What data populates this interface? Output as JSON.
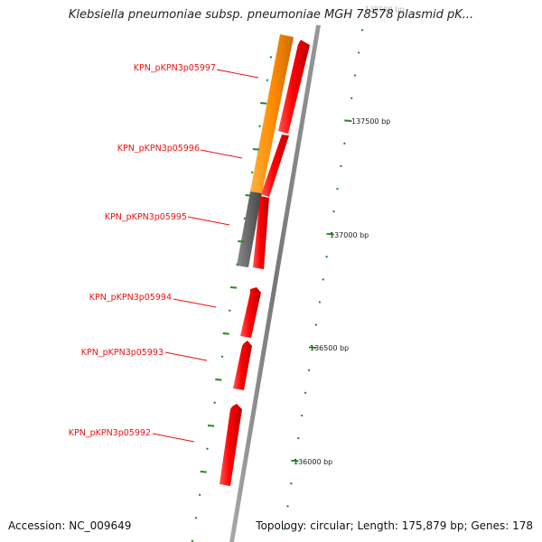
{
  "title": "Klebsiella pneumoniae subsp. pneumoniae MGH 78578 plasmid pK...",
  "footer": {
    "accession": "Accession: NC_009649",
    "stats": "Topology: circular; Length: 175,879 bp; Genes: 178"
  },
  "genes": [
    {
      "id": "g5997",
      "label": "KPN_pKPN3p05997"
    },
    {
      "id": "g5996",
      "label": "KPN_pKPN3p05996"
    },
    {
      "id": "g5995",
      "label": "KPN_pKPN3p05995"
    },
    {
      "id": "g5994",
      "label": "KPN_pKPN3p05994"
    },
    {
      "id": "g5993",
      "label": "KPN_pKPN3p05993"
    },
    {
      "id": "g5992",
      "label": "KPN_pKPN3p05992"
    }
  ],
  "bp_labels": [
    {
      "id": "bp138000",
      "text": "138000 bp"
    },
    {
      "id": "bp137500",
      "text": "137500 bp"
    },
    {
      "id": "bp137000",
      "text": "137000 bp"
    },
    {
      "id": "bp136500",
      "text": "136500 bp"
    },
    {
      "id": "bp136000",
      "text": "136000 bp"
    }
  ],
  "colors": {
    "gene_forward": "#ff0000",
    "gene_orange": "#ff8c00",
    "gene_gray": "#666666",
    "backbone": "#888888",
    "tick": "#228b22",
    "label": "#ee1111"
  }
}
